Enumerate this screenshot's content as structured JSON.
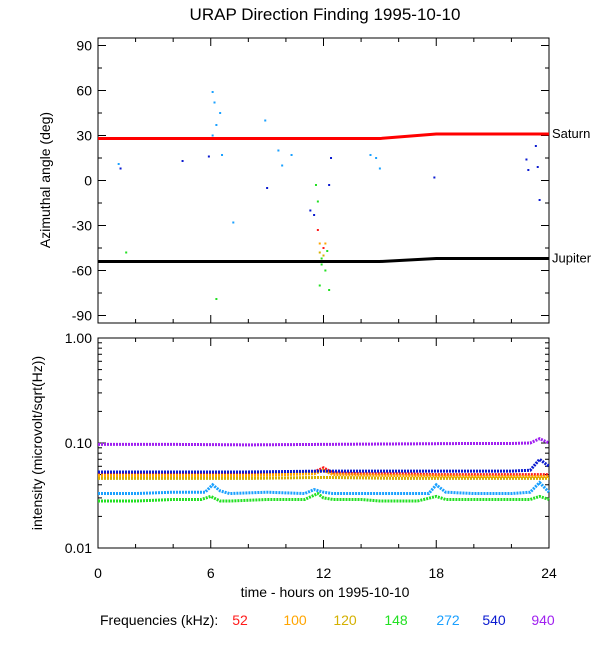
{
  "title": "URAP Direction Finding  1995-10-10",
  "xlabel": "time - hours on 1995-10-10",
  "legend": {
    "label": "Frequencies (kHz):",
    "entries": [
      {
        "label": "52",
        "color": "#ff1a1a"
      },
      {
        "label": "100",
        "color": "#ffa500"
      },
      {
        "label": "120",
        "color": "#d4b000"
      },
      {
        "label": "148",
        "color": "#22e022"
      },
      {
        "label": "272",
        "color": "#1aa0ff"
      },
      {
        "label": "540",
        "color": "#0a1ad0"
      },
      {
        "label": "940",
        "color": "#a020f0"
      }
    ]
  },
  "chart_data": [
    {
      "type": "scatter",
      "title": "URAP Direction Finding  1995-10-10",
      "xlabel": "",
      "ylabel": "Azimuthal angle (deg)",
      "xlim": [
        0,
        24
      ],
      "ylim": [
        -95,
        95
      ],
      "xticks": [
        0,
        6,
        12,
        18,
        24
      ],
      "yticks": [
        90,
        60,
        30,
        0,
        -30,
        -60,
        -90
      ],
      "grid": false,
      "reference_lines": [
        {
          "name": "Saturn",
          "color": "#ff0000",
          "x": [
            0,
            15,
            18,
            24
          ],
          "y": [
            28,
            28,
            31,
            31
          ]
        },
        {
          "name": "Jupiter",
          "color": "#000000",
          "x": [
            0,
            15,
            18,
            24
          ],
          "y": [
            -54,
            -54,
            -52,
            -52
          ]
        }
      ],
      "points": [
        {
          "x": 1.1,
          "y": 11,
          "color": "#1aa0ff"
        },
        {
          "x": 1.2,
          "y": 8,
          "color": "#0a1ad0"
        },
        {
          "x": 1.5,
          "y": -48,
          "color": "#22e022"
        },
        {
          "x": 4.5,
          "y": 13,
          "color": "#0a1ad0"
        },
        {
          "x": 5.9,
          "y": 16,
          "color": "#0a1ad0"
        },
        {
          "x": 6.1,
          "y": 59,
          "color": "#1aa0ff"
        },
        {
          "x": 6.2,
          "y": 52,
          "color": "#1aa0ff"
        },
        {
          "x": 6.3,
          "y": 37,
          "color": "#1aa0ff"
        },
        {
          "x": 6.1,
          "y": 30,
          "color": "#1aa0ff"
        },
        {
          "x": 6.5,
          "y": 45,
          "color": "#1aa0ff"
        },
        {
          "x": 6.6,
          "y": 17,
          "color": "#1aa0ff"
        },
        {
          "x": 7.2,
          "y": -28,
          "color": "#1aa0ff"
        },
        {
          "x": 6.3,
          "y": -79,
          "color": "#22e022"
        },
        {
          "x": 8.9,
          "y": 40,
          "color": "#1aa0ff"
        },
        {
          "x": 9.0,
          "y": -5,
          "color": "#0a1ad0"
        },
        {
          "x": 9.6,
          "y": 20,
          "color": "#1aa0ff"
        },
        {
          "x": 9.8,
          "y": 10,
          "color": "#1aa0ff"
        },
        {
          "x": 10.3,
          "y": 17,
          "color": "#1aa0ff"
        },
        {
          "x": 11.3,
          "y": -20,
          "color": "#0a1ad0"
        },
        {
          "x": 11.5,
          "y": -23,
          "color": "#0a1ad0"
        },
        {
          "x": 11.6,
          "y": -3,
          "color": "#22e022"
        },
        {
          "x": 11.7,
          "y": -14,
          "color": "#22e022"
        },
        {
          "x": 11.7,
          "y": -33,
          "color": "#ff1a1a"
        },
        {
          "x": 11.8,
          "y": -42,
          "color": "#ffa500"
        },
        {
          "x": 11.8,
          "y": -48,
          "color": "#d4b000"
        },
        {
          "x": 11.9,
          "y": -52,
          "color": "#22e022"
        },
        {
          "x": 11.9,
          "y": -56,
          "color": "#22e022"
        },
        {
          "x": 12.0,
          "y": -45,
          "color": "#ff1a1a"
        },
        {
          "x": 12.0,
          "y": -50,
          "color": "#d4b000"
        },
        {
          "x": 12.1,
          "y": -60,
          "color": "#22e022"
        },
        {
          "x": 12.1,
          "y": -42,
          "color": "#ffa500"
        },
        {
          "x": 12.2,
          "y": -47,
          "color": "#22e022"
        },
        {
          "x": 11.8,
          "y": -70,
          "color": "#22e022"
        },
        {
          "x": 12.3,
          "y": -73,
          "color": "#22e022"
        },
        {
          "x": 12.3,
          "y": -3,
          "color": "#0a1ad0"
        },
        {
          "x": 12.4,
          "y": 15,
          "color": "#0a1ad0"
        },
        {
          "x": 14.5,
          "y": 17,
          "color": "#1aa0ff"
        },
        {
          "x": 14.8,
          "y": 15,
          "color": "#1aa0ff"
        },
        {
          "x": 15.0,
          "y": 8,
          "color": "#1aa0ff"
        },
        {
          "x": 17.9,
          "y": 2,
          "color": "#0a1ad0"
        },
        {
          "x": 22.8,
          "y": 14,
          "color": "#0a1ad0"
        },
        {
          "x": 22.9,
          "y": 7,
          "color": "#0a1ad0"
        },
        {
          "x": 23.3,
          "y": 23,
          "color": "#0a1ad0"
        },
        {
          "x": 23.4,
          "y": 9,
          "color": "#0a1ad0"
        },
        {
          "x": 23.5,
          "y": -13,
          "color": "#0a1ad0"
        }
      ]
    },
    {
      "type": "line",
      "title": "",
      "xlabel": "time - hours on 1995-10-10",
      "ylabel": "intensity (microvolt/sqrt(Hz))",
      "xlim": [
        0,
        24
      ],
      "ylim": [
        0.01,
        1.0
      ],
      "yscale": "log",
      "xticks": [
        0,
        6,
        12,
        18,
        24
      ],
      "yticks": [
        0.01,
        0.1,
        1.0
      ],
      "ytick_labels": [
        "0.01",
        "0.10",
        "1.00"
      ],
      "grid": false,
      "series": [
        {
          "name": "52",
          "color": "#ff1a1a",
          "x": [
            0,
            2,
            4,
            6,
            8,
            10,
            11.5,
            12,
            12.5,
            14,
            16,
            18,
            20,
            22,
            23,
            24
          ],
          "y": [
            0.052,
            0.052,
            0.051,
            0.051,
            0.051,
            0.051,
            0.053,
            0.058,
            0.052,
            0.051,
            0.051,
            0.05,
            0.05,
            0.05,
            0.05,
            0.05
          ]
        },
        {
          "name": "100",
          "color": "#ffa500",
          "x": [
            0,
            4,
            8,
            11.5,
            12,
            12.5,
            16,
            20,
            24
          ],
          "y": [
            0.049,
            0.049,
            0.049,
            0.051,
            0.055,
            0.05,
            0.049,
            0.048,
            0.048
          ]
        },
        {
          "name": "120",
          "color": "#d4b000",
          "x": [
            0,
            4,
            8,
            12,
            16,
            20,
            24
          ],
          "y": [
            0.046,
            0.046,
            0.046,
            0.047,
            0.046,
            0.046,
            0.046
          ]
        },
        {
          "name": "148",
          "color": "#22e022",
          "x": [
            0,
            2,
            4,
            5.5,
            6.0,
            6.5,
            7,
            9,
            11,
            11.7,
            12,
            12.5,
            14,
            15,
            17,
            18,
            18.5,
            20,
            22,
            23,
            23.5,
            24
          ],
          "y": [
            0.028,
            0.028,
            0.029,
            0.029,
            0.031,
            0.028,
            0.028,
            0.029,
            0.029,
            0.033,
            0.03,
            0.029,
            0.029,
            0.028,
            0.028,
            0.031,
            0.029,
            0.029,
            0.029,
            0.029,
            0.031,
            0.029
          ]
        },
        {
          "name": "272",
          "color": "#1aa0ff",
          "x": [
            0,
            2,
            4,
            5.7,
            6.1,
            6.5,
            7,
            9,
            11,
            11.5,
            12,
            12.5,
            14,
            16,
            17.6,
            18,
            18.5,
            20,
            22,
            23,
            23.5,
            24
          ],
          "y": [
            0.033,
            0.033,
            0.034,
            0.034,
            0.04,
            0.035,
            0.033,
            0.034,
            0.033,
            0.036,
            0.034,
            0.033,
            0.033,
            0.033,
            0.033,
            0.04,
            0.034,
            0.033,
            0.033,
            0.034,
            0.042,
            0.034
          ]
        },
        {
          "name": "540",
          "color": "#0a1ad0",
          "x": [
            0,
            4,
            8,
            12,
            16,
            20,
            22,
            23,
            23.5,
            24
          ],
          "y": [
            0.053,
            0.053,
            0.053,
            0.054,
            0.054,
            0.054,
            0.054,
            0.055,
            0.07,
            0.06
          ]
        },
        {
          "name": "940",
          "color": "#a020f0",
          "x": [
            0,
            4,
            8,
            12,
            16,
            20,
            22,
            23,
            23.5,
            24
          ],
          "y": [
            0.097,
            0.097,
            0.096,
            0.097,
            0.098,
            0.099,
            0.099,
            0.1,
            0.11,
            0.1
          ]
        }
      ],
      "annotations": []
    }
  ]
}
